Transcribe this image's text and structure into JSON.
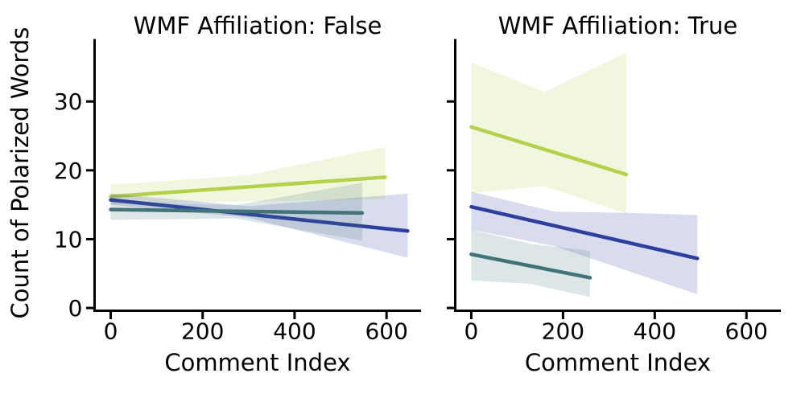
{
  "figure": {
    "background": "#ffffff",
    "text_color": "#000000",
    "spine_color": "#000000"
  },
  "chart_data": {
    "type": "line",
    "subtype": "faceted-regression-with-confidence-bands",
    "xlabel": "Comment Index",
    "ylabel": "Count of Polarized Words",
    "xticks": [
      0,
      200,
      400,
      600
    ],
    "yticks": [
      0,
      10,
      20,
      30
    ],
    "xlim": [
      -35,
      675
    ],
    "ylim": [
      -0.4,
      38.9
    ],
    "grid": false,
    "legend": "none",
    "ci_alpha": 0.18,
    "line_width": 4.5,
    "facets": [
      {
        "title": "WMF Affiliation: False",
        "series": [
          {
            "name": "series-yellow-green",
            "color": "#b3d14b",
            "line": {
              "x": [
                0,
                597
              ],
              "y": [
                16.2,
                19.0
              ]
            },
            "ci": {
              "x": [
                0,
                300,
                597
              ],
              "upper": [
                17.9,
                19.3,
                23.4
              ],
              "lower": [
                15.1,
                15.5,
                15.8
              ]
            }
          },
          {
            "name": "series-dark-blue",
            "color": "#2d3e9e",
            "line": {
              "x": [
                0,
                646
              ],
              "y": [
                15.7,
                11.2
              ]
            },
            "ci": {
              "x": [
                0,
                300,
                646
              ],
              "upper": [
                16.6,
                14.8,
                16.6
              ],
              "lower": [
                15.0,
                13.1,
                7.3
              ]
            }
          },
          {
            "name": "series-teal",
            "color": "#41737a",
            "line": {
              "x": [
                0,
                547
              ],
              "y": [
                14.3,
                13.8
              ]
            },
            "ci": {
              "x": [
                0,
                270,
                547
              ],
              "upper": [
                15.6,
                14.9,
                18.2
              ],
              "lower": [
                12.8,
                13.0,
                9.8
              ]
            }
          }
        ]
      },
      {
        "title": "WMF Affiliation: True",
        "series": [
          {
            "name": "series-yellow-green",
            "color": "#b3d14b",
            "line": {
              "x": [
                0,
                338
              ],
              "y": [
                26.3,
                19.4
              ]
            },
            "ci": {
              "x": [
                0,
                160,
                338
              ],
              "upper": [
                35.7,
                31.4,
                37.1
              ],
              "lower": [
                16.7,
                17.7,
                13.7
              ]
            }
          },
          {
            "name": "series-dark-blue",
            "color": "#2d3e9e",
            "line": {
              "x": [
                0,
                493
              ],
              "y": [
                14.7,
                7.2
              ]
            },
            "ci": {
              "x": [
                0,
                180,
                350,
                493
              ],
              "upper": [
                16.9,
                14.0,
                13.8,
                13.5
              ],
              "lower": [
                11.4,
                9.0,
                5.2,
                2.0
              ]
            }
          },
          {
            "name": "series-teal",
            "color": "#41737a",
            "line": {
              "x": [
                0,
                259
              ],
              "y": [
                7.8,
                4.4
              ]
            },
            "ci": {
              "x": [
                0,
                130,
                259
              ],
              "upper": [
                11.4,
                9.3,
                8.3
              ],
              "lower": [
                4.0,
                3.5,
                1.6
              ]
            }
          }
        ]
      }
    ]
  }
}
